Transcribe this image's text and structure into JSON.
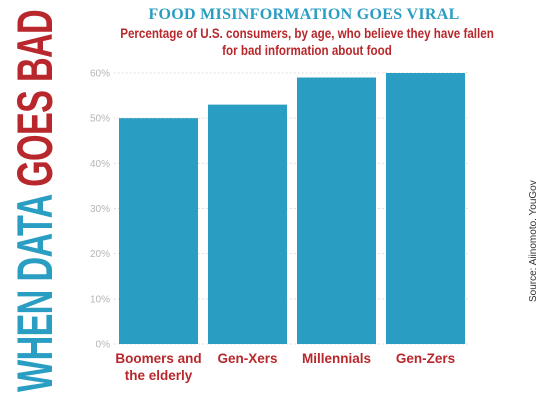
{
  "banner": {
    "part1": "WHEN DATA ",
    "part2": "GOES BAD",
    "color1": "#2a9dc2",
    "color2": "#b8272b"
  },
  "source": "Source: Ajinomoto, YouGov",
  "colors": {
    "bar": "#2a9dc2",
    "title": "#2a9dc2",
    "subtitle": "#b8272b",
    "category_label": "#b8272b",
    "axis_tick": "#b5b5b5",
    "grid": "#d6d6d6"
  },
  "chart_data": {
    "type": "bar",
    "title": "FOOD MISINFORMATION GOES VIRAL",
    "subtitle": "Percentage of U.S. consumers, by age, who believe they have fallen for bad information about food",
    "categories": [
      "Boomers and the elderly",
      "Gen-Xers",
      "Millennials",
      "Gen-Zers"
    ],
    "category_lines": [
      [
        "Boomers and",
        "the elderly"
      ],
      [
        "Gen-Xers"
      ],
      [
        "Millennials"
      ],
      [
        "Gen-Zers"
      ]
    ],
    "values": [
      50,
      53,
      59,
      60
    ],
    "value_unit": "%",
    "xlabel": "",
    "ylabel": "",
    "ylim": [
      0,
      60
    ],
    "yticks": [
      0,
      10,
      20,
      30,
      40,
      50,
      60
    ],
    "ytick_labels": [
      "0%",
      "10%",
      "20%",
      "30%",
      "40%",
      "50%",
      "60%"
    ],
    "grid": true,
    "legend": false
  }
}
